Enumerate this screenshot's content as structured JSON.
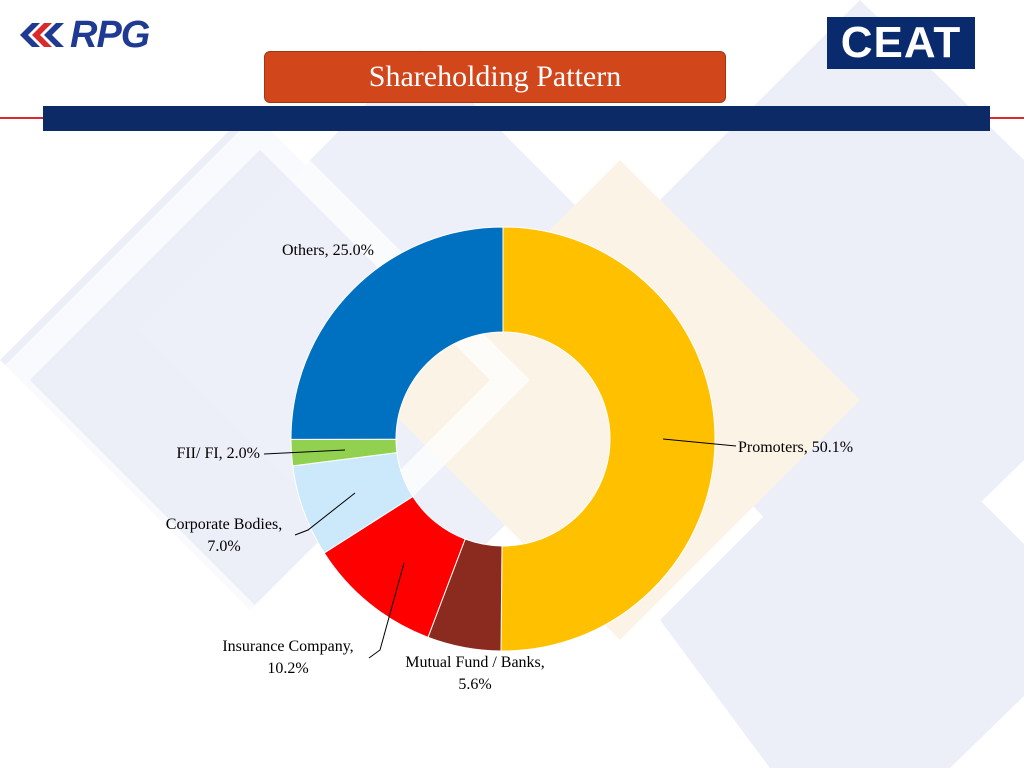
{
  "header": {
    "rpg_logo_text": "RPG",
    "ceat_logo_text": "CEAT",
    "title": "Shareholding Pattern"
  },
  "colors": {
    "title_bg": "#d2461b",
    "navy_bar": "#0b2a66",
    "accent_line": "#d92b2b"
  },
  "chart_data": {
    "type": "pie",
    "donut": true,
    "title": "Shareholding Pattern",
    "slices": [
      {
        "label": "Promoters",
        "value": 50.1,
        "display": "Promoters, 50.1%",
        "color": "#ffc000"
      },
      {
        "label": "Mutual Fund / Banks",
        "value": 5.6,
        "display_lines": [
          "Mutual Fund / Banks,",
          "5.6%"
        ],
        "color": "#8b2a1e"
      },
      {
        "label": "Insurance Company",
        "value": 10.2,
        "display_lines": [
          "Insurance Company,",
          "10.2%"
        ],
        "color": "#ff0000"
      },
      {
        "label": "Corporate Bodies",
        "value": 7.0,
        "display_lines": [
          "Corporate Bodies,",
          "7.0%"
        ],
        "color": "#cce8fb"
      },
      {
        "label": "FII/ FI",
        "value": 2.0,
        "display": "FII/ FI, 2.0%",
        "color": "#92d050"
      },
      {
        "label": "Others",
        "value": 25.0,
        "display": "Others, 25.0%",
        "color": "#0070c0"
      }
    ]
  }
}
